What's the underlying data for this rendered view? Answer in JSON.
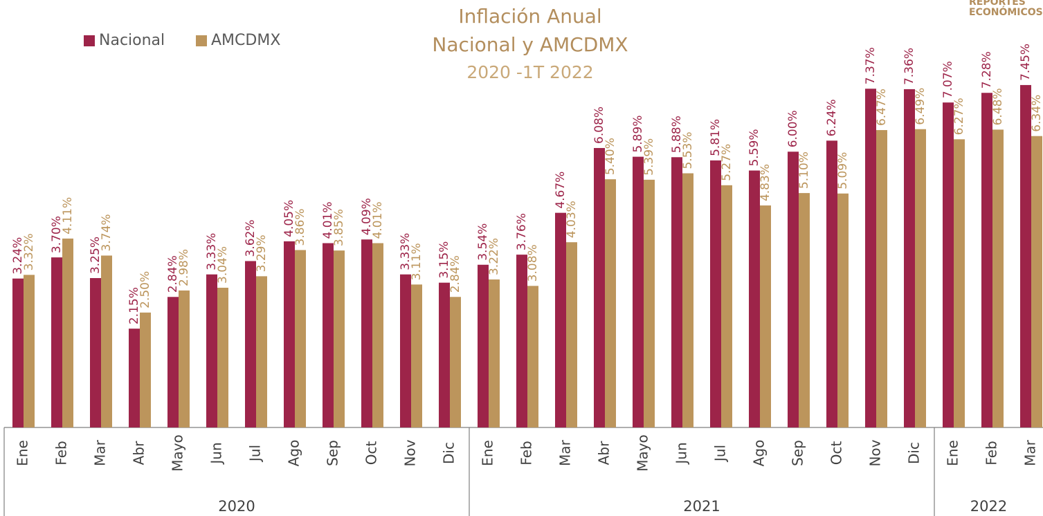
{
  "chart_data": {
    "type": "bar",
    "title": "Inflación Anual",
    "subtitle": "Nacional y AMCDMX",
    "period": "2020 -1T 2022",
    "logo": [
      "REPORTES",
      "ECONÓMICOS"
    ],
    "groups": [
      {
        "label": "2020",
        "categories": [
          "Ene",
          "Feb",
          "Mar",
          "Abr",
          "Mayo",
          "Jun",
          "Jul",
          "Ago",
          "Sep",
          "Oct",
          "Nov",
          "Dic"
        ]
      },
      {
        "label": "2021",
        "categories": [
          "Ene",
          "Feb",
          "Mar",
          "Abr",
          "Mayo",
          "Jun",
          "Jul",
          "Ago",
          "Sep",
          "Oct",
          "Nov",
          "Dic"
        ]
      },
      {
        "label": "2022",
        "categories": [
          "Ene",
          "Feb",
          "Mar"
        ]
      }
    ],
    "ylim": [
      0,
      9.3
    ],
    "legend": "top-left",
    "series": [
      {
        "name": "Nacional",
        "color": "#9d2449",
        "values": [
          3.24,
          3.7,
          3.25,
          2.15,
          2.84,
          3.33,
          3.62,
          4.05,
          4.01,
          4.09,
          3.33,
          3.15,
          3.54,
          3.76,
          4.67,
          6.08,
          5.89,
          5.88,
          5.81,
          5.59,
          6.0,
          6.24,
          7.37,
          7.36,
          7.07,
          7.28,
          7.45
        ],
        "value_labels": [
          "3.24%",
          "3.70%",
          "3.25%",
          "2.15%",
          "2.84%",
          "3.33%",
          "3.62%",
          "4.05%",
          "4.01%",
          "4.09%",
          "3.33%",
          "3.15%",
          "3.54%",
          "3.76%",
          "4.67%",
          "6.08%",
          "5.89%",
          "5.88%",
          "5.81%",
          "5.59%",
          "6.00%",
          "6.24%",
          "7.37%",
          "7.36%",
          "7.07%",
          "7.28%",
          "7.45%"
        ]
      },
      {
        "name": "AMCDMX",
        "color": "#bc955c",
        "values": [
          3.32,
          4.11,
          3.74,
          2.5,
          2.98,
          3.04,
          3.29,
          3.86,
          3.85,
          4.01,
          3.11,
          2.84,
          3.22,
          3.08,
          4.03,
          5.4,
          5.39,
          5.53,
          5.27,
          4.83,
          5.1,
          5.09,
          6.47,
          6.49,
          6.27,
          6.48,
          6.34
        ],
        "value_labels": [
          "3.32%",
          "4.11%",
          "3.74%",
          "2.50%",
          "2.98%",
          "3.04%",
          "3.29%",
          "3.86%",
          "3.85%",
          "4.01%",
          "3.11%",
          "2.84%",
          "3.22%",
          "3.08%",
          "4.03%",
          "5.40%",
          "5.39%",
          "5.53%",
          "5.27%",
          "4.83%",
          "5.10%",
          "5.09%",
          "6.47%",
          "6.49%",
          "6.27%",
          "6.48%",
          "6.34%"
        ]
      }
    ]
  }
}
